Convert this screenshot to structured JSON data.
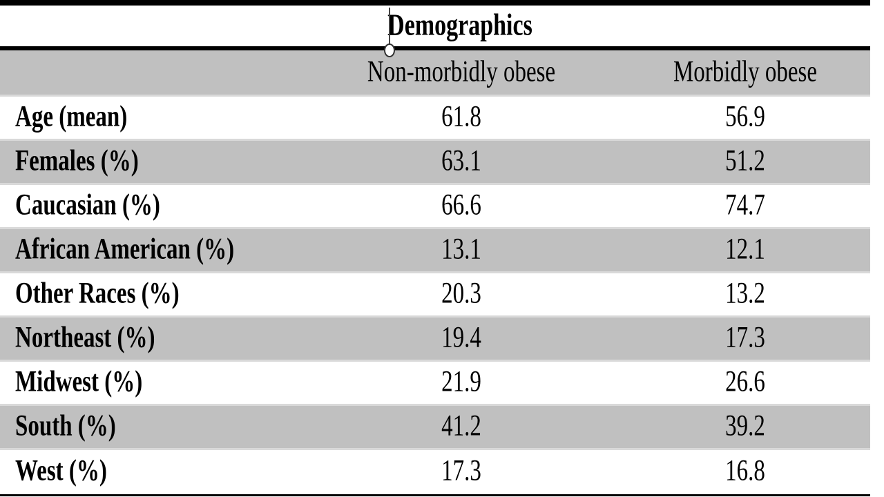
{
  "title": "Demographics",
  "columns": [
    "Non-morbidly obese",
    "Morbidly obese"
  ],
  "rows": [
    {
      "label": "Age (mean)",
      "values": [
        "61.8",
        "56.9"
      ]
    },
    {
      "label": "Females (%)",
      "values": [
        "63.1",
        "51.2"
      ]
    },
    {
      "label": "Caucasian (%)",
      "values": [
        "66.6",
        "74.7"
      ]
    },
    {
      "label": "African American (%)",
      "values": [
        "13.1",
        "12.1"
      ]
    },
    {
      "label": "Other Races (%)",
      "values": [
        "20.3",
        "13.2"
      ]
    },
    {
      "label": "Northeast (%)",
      "values": [
        "19.4",
        "17.3"
      ]
    },
    {
      "label": "Midwest (%)",
      "values": [
        "21.9",
        "26.6"
      ]
    },
    {
      "label": "South (%)",
      "values": [
        "41.2",
        "39.2"
      ]
    },
    {
      "label": "West (%)",
      "values": [
        "17.3",
        "16.8"
      ]
    }
  ],
  "colors": {
    "row_shading": "#c0c0c0",
    "row_separator": "#d9d9d9",
    "rule": "#000000",
    "text": "#000000"
  },
  "chart_data": {
    "type": "table",
    "title": "Demographics",
    "columns": [
      "",
      "Non-morbidly obese",
      "Morbidly obese"
    ],
    "rows": [
      [
        "Age (mean)",
        61.8,
        56.9
      ],
      [
        "Females (%)",
        63.1,
        51.2
      ],
      [
        "Caucasian (%)",
        66.6,
        74.7
      ],
      [
        "African American (%)",
        13.1,
        12.1
      ],
      [
        "Other Races (%)",
        20.3,
        13.2
      ],
      [
        "Northeast (%)",
        19.4,
        17.3
      ],
      [
        "Midwest (%)",
        21.9,
        26.6
      ],
      [
        "South (%)",
        41.2,
        39.2
      ],
      [
        "West (%)",
        17.3,
        16.8
      ]
    ],
    "layout": {
      "row_shading": "alternating",
      "header_shaded": true,
      "value_alignment": "center",
      "label_style": "bold"
    }
  }
}
